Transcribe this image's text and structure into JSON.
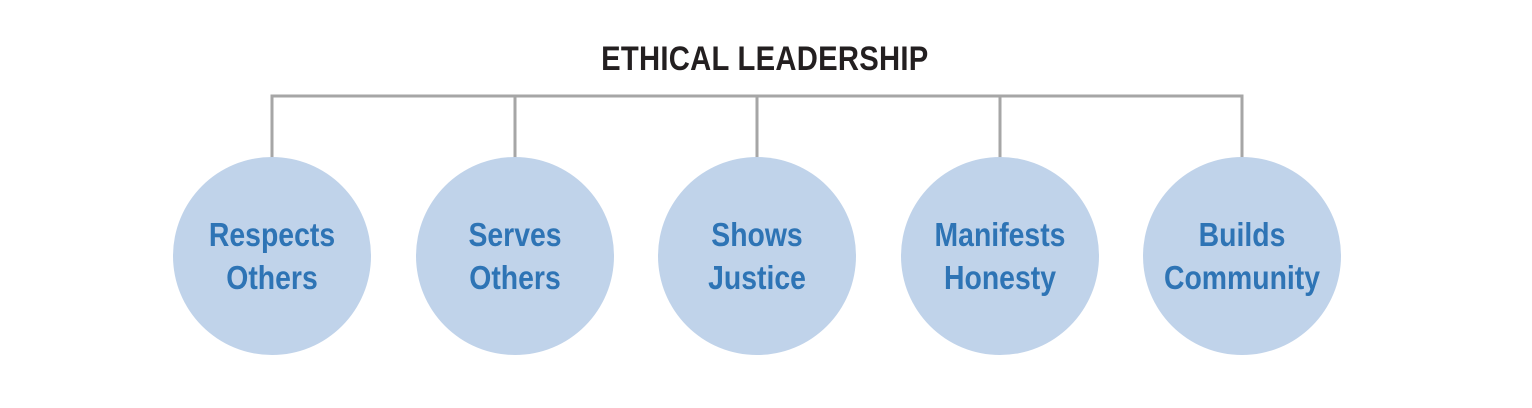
{
  "title": "ETHICAL LEADERSHIP",
  "colors": {
    "connector": "#a6a6a6",
    "circle_fill": "#c0d3ea",
    "circle_text": "#2e74b5",
    "title_text": "#231f20"
  },
  "nodes": [
    {
      "line1": "Respects",
      "line2": "Others"
    },
    {
      "line1": "Serves",
      "line2": "Others"
    },
    {
      "line1": "Shows",
      "line2": "Justice"
    },
    {
      "line1": "Manifests",
      "line2": "Honesty"
    },
    {
      "line1": "Builds",
      "line2": "Community"
    }
  ]
}
